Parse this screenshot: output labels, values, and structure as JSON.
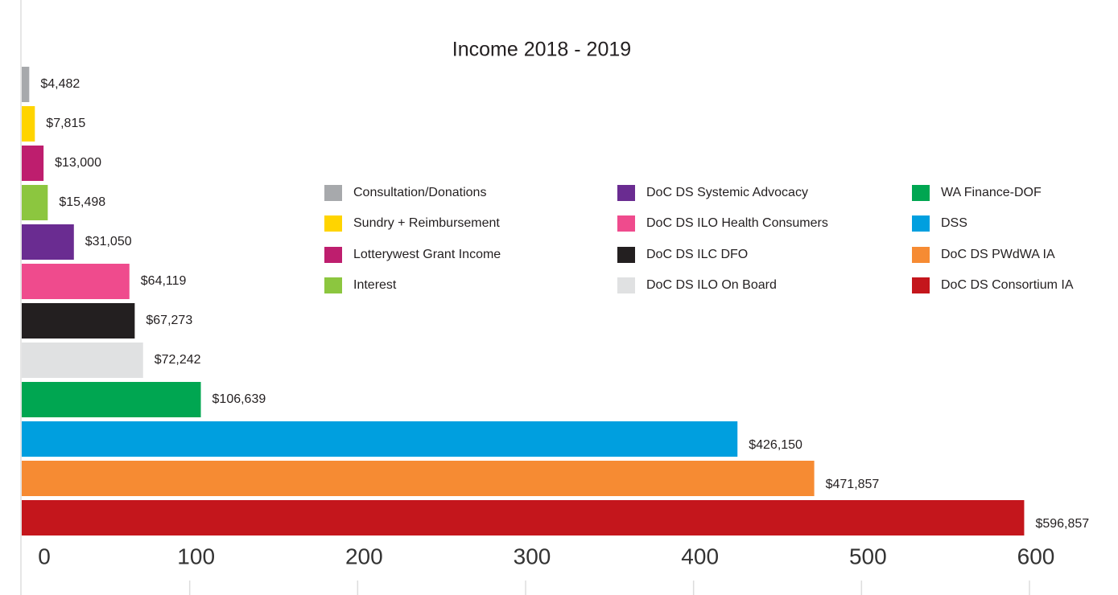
{
  "chart_data": {
    "type": "bar",
    "orientation": "horizontal",
    "title": "Income 2018 - 2019",
    "categories": [
      "Consultation/Donations",
      "Sundry + Reimbursement",
      "Lotterywest Grant Income",
      "Interest",
      "DoC DS Systemic Advocacy",
      "DoC DS ILO Health Consumers",
      "DoC DS ILC DFO",
      "DoC DS ILO On Board",
      "WA Finance-DOF",
      "DSS",
      "DoC DS PWdWA IA",
      "DoC DS Consortium IA"
    ],
    "values": [
      4.482,
      7.815,
      13.0,
      15.498,
      31.05,
      64.119,
      67.273,
      72.242,
      106.639,
      426.15,
      471.857,
      596.857
    ],
    "value_labels": [
      "$4,482",
      "$7,815",
      "$13,000",
      "$15,498",
      "$31,050",
      "$64,119",
      "$67,273",
      "$72,242",
      "$106,639",
      "$426,150",
      "$471,857",
      "$596,857"
    ],
    "colors": [
      "#a7a9ac",
      "#ffd400",
      "#be1e6e",
      "#8cc63f",
      "#6a2c91",
      "#ef4b8d",
      "#231f20",
      "#e0e1e2",
      "#00a651",
      "#009fdf",
      "#f68b33",
      "#c4161c"
    ],
    "xlim": [
      0,
      600
    ],
    "xticks": [
      0,
      100,
      200,
      300,
      400,
      500,
      600
    ],
    "legend": "center"
  }
}
